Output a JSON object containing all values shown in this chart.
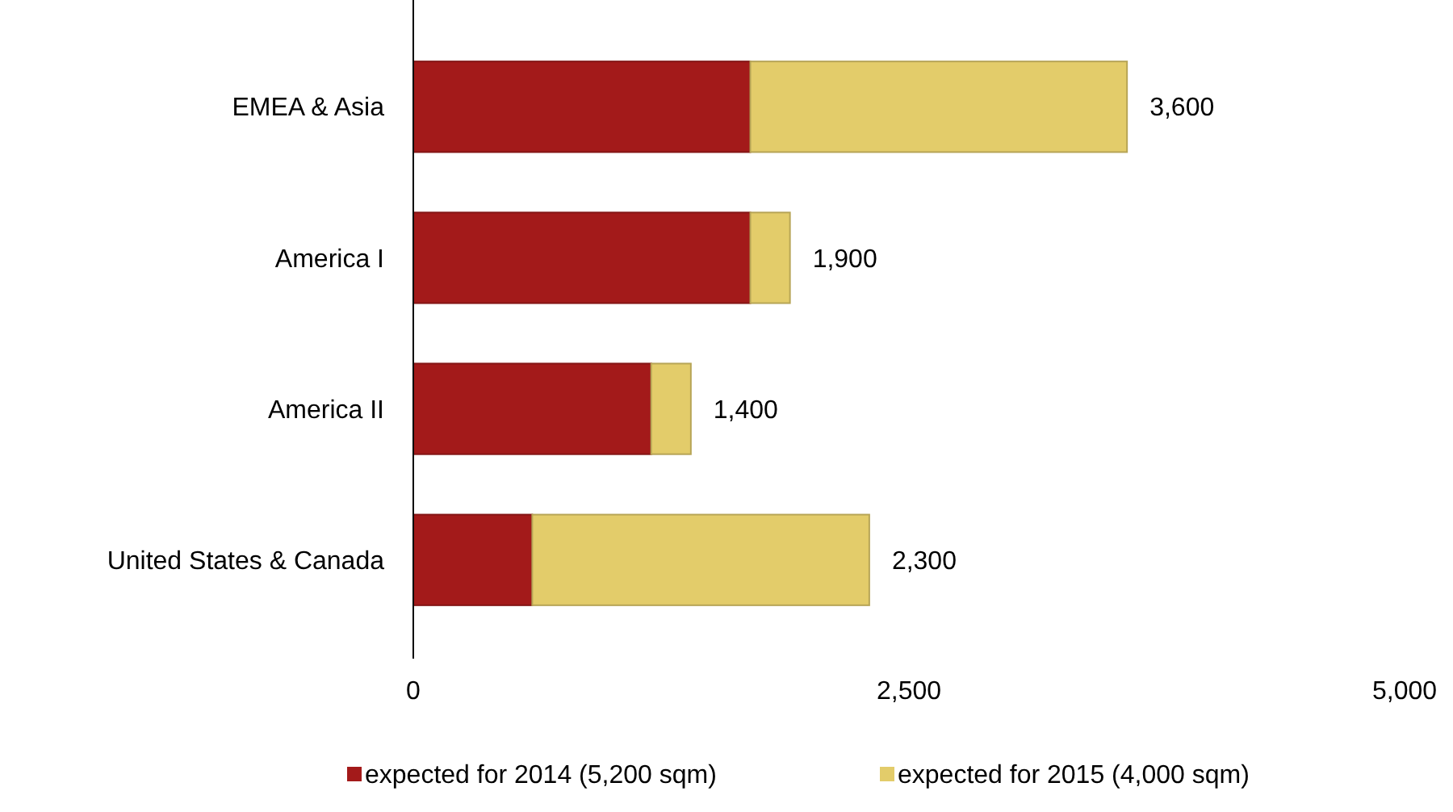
{
  "chart_data": {
    "type": "bar",
    "orientation": "horizontal",
    "stacked": true,
    "categories": [
      "EMEA & Asia",
      "America I",
      "America II",
      "United States & Canada"
    ],
    "series": [
      {
        "name": "expected for 2014 (5,200 sqm)",
        "color": "#a31a1a",
        "values": [
          1700,
          1700,
          1200,
          600
        ]
      },
      {
        "name": "expected for 2015 (4,000 sqm)",
        "color": "#e3cc6a",
        "values": [
          1900,
          200,
          200,
          1700
        ]
      }
    ],
    "totals": [
      "3,600",
      "1,900",
      "1,400",
      "2,300"
    ],
    "xlim": [
      0,
      5000
    ],
    "xticks": [
      0,
      {
        "value": 2500,
        "label": "2,500"
      },
      {
        "value": 5000,
        "label": "5,000"
      }
    ],
    "grid": false,
    "legend": "bottom"
  }
}
